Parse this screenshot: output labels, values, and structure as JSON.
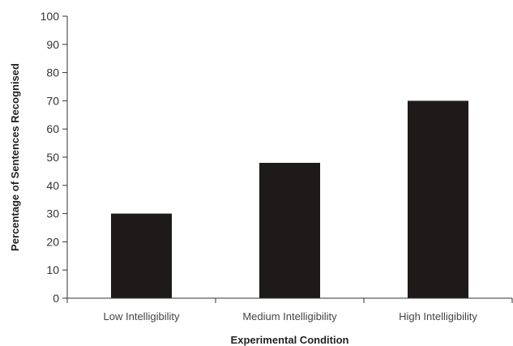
{
  "chart_data": {
    "type": "bar",
    "title": "",
    "xlabel": "Experimental Condition",
    "ylabel": "Percentage of Sentences Recognised",
    "categories": [
      "Low Intelligibility",
      "Medium Intelligibility",
      "High Intelligibility"
    ],
    "values": [
      30,
      48,
      70
    ],
    "ylim": [
      0,
      100
    ],
    "yticks": [
      0,
      10,
      20,
      30,
      40,
      50,
      60,
      70,
      80,
      90,
      100
    ],
    "grid": false,
    "legend": "none",
    "bar_color": "#1e1a1a"
  }
}
